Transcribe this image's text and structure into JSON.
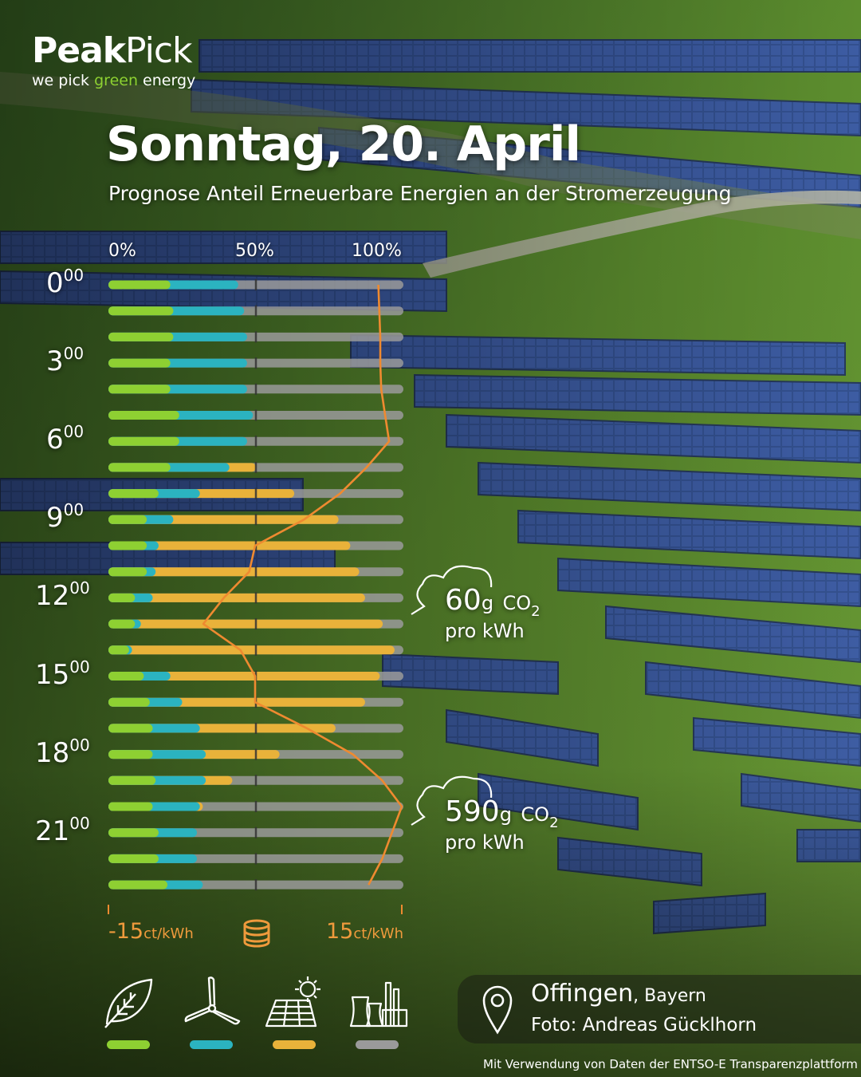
{
  "brand": {
    "name_bold": "Peak",
    "name_light": "Pick",
    "tagline_before": "we pick ",
    "tagline_green": "green",
    "tagline_after": " energy"
  },
  "title": "Sonntag, 20. April",
  "subtitle": "Prognose Anteil Erneuerbare Energien an der Stromerzeugung",
  "colors": {
    "green_energy": "#8ed032",
    "wind": "#2bb3c0",
    "solar": "#e9b23a",
    "fossil": "#9a9a9a",
    "price_line": "#ef8a30",
    "accent_text": "#8ed032"
  },
  "chart_data": {
    "type": "bar",
    "orientation": "horizontal",
    "stacked": true,
    "share_axis": {
      "min": 0,
      "max": 100,
      "tick_labels": [
        "0%",
        "50%",
        "100%"
      ]
    },
    "hour_labels": [
      {
        "hour": "0",
        "suffix": "00"
      },
      {
        "hour": "3",
        "suffix": "00"
      },
      {
        "hour": "6",
        "suffix": "00"
      },
      {
        "hour": "9",
        "suffix": "00"
      },
      {
        "hour": "12",
        "suffix": "00"
      },
      {
        "hour": "15",
        "suffix": "00"
      },
      {
        "hour": "18",
        "suffix": "00"
      },
      {
        "hour": "21",
        "suffix": "00"
      }
    ],
    "series": [
      {
        "key": "green",
        "values": [
          21,
          22,
          22,
          21,
          21,
          24,
          24,
          21,
          17,
          13,
          13,
          13,
          9,
          9,
          7,
          12,
          14,
          15,
          15,
          16,
          15,
          17,
          17,
          20
        ]
      },
      {
        "key": "wind",
        "values": [
          23,
          24,
          25,
          26,
          26,
          25,
          23,
          20,
          14,
          9,
          4,
          3,
          6,
          2,
          1,
          9,
          11,
          16,
          18,
          17,
          16,
          13,
          13,
          12
        ]
      },
      {
        "key": "solar",
        "values": [
          0,
          0,
          0,
          0,
          0,
          0,
          0,
          9,
          32,
          56,
          65,
          69,
          72,
          82,
          89,
          71,
          62,
          46,
          25,
          9,
          1,
          0,
          0,
          0
        ]
      }
    ],
    "price_line": {
      "x_min": -15,
      "x_max": 15,
      "values": [
        12.6,
        12.7,
        12.8,
        12.8,
        12.9,
        13.3,
        13.7,
        11.4,
        8.7,
        5.0,
        0.0,
        -0.6,
        -3.2,
        -5.3,
        -1.5,
        0.0,
        0.0,
        5.3,
        10.0,
        13.0,
        15.0,
        14.0,
        13.0,
        11.6
      ],
      "axis_labels": {
        "min_value": "-15",
        "max_value": "15",
        "unit": "ct/kWh"
      }
    },
    "annotations": [
      {
        "hour_index": 12,
        "value": "60",
        "unit": "g",
        "co2_text": "CO",
        "co2_sub": "2",
        "per": "pro kWh"
      },
      {
        "hour_index": 20,
        "value": "590",
        "unit": "g",
        "co2_text": "CO",
        "co2_sub": "2",
        "per": "pro kWh"
      }
    ],
    "legend": [
      {
        "icon": "leaf-icon",
        "color": "#8ed032"
      },
      {
        "icon": "wind-turbine-icon",
        "color": "#2bb3c0"
      },
      {
        "icon": "solar-panel-icon",
        "color": "#e9b23a"
      },
      {
        "icon": "power-plant-icon",
        "color": "#9a9a9a"
      }
    ]
  },
  "location": {
    "city": "Offingen",
    "region": ", Bayern",
    "photo_credit": "Foto: Andreas Gücklhorn"
  },
  "source": "Mit Verwendung von Daten der ENTSO-E Transparenzplattform"
}
